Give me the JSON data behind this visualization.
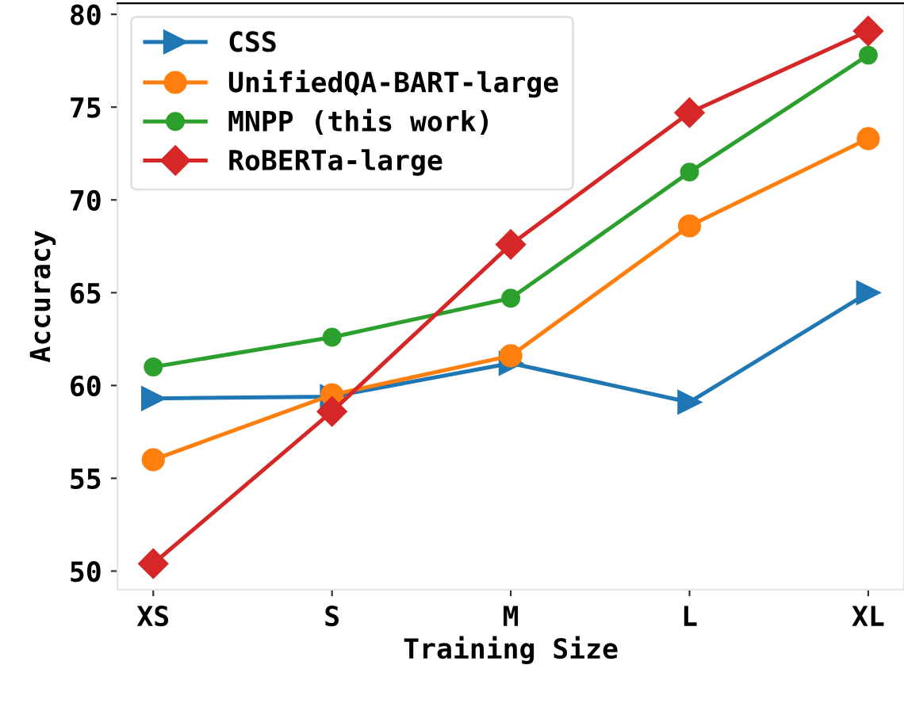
{
  "chart_data": {
    "type": "line",
    "xlabel": "Training Size",
    "ylabel": "Accuracy",
    "categories": [
      "XS",
      "S",
      "M",
      "L",
      "XL"
    ],
    "ylim": [
      49,
      80.6
    ],
    "yticks": [
      50,
      55,
      60,
      65,
      70,
      75,
      80
    ],
    "grid": false,
    "legend": "top left",
    "line_style": "solid",
    "series": [
      {
        "name": "CSS",
        "color": "#1f77b4",
        "marker": "triangle",
        "values": [
          59.3,
          59.4,
          61.2,
          59.1,
          65.0
        ]
      },
      {
        "name": "UnifiedQA-BART-large",
        "color": "#ff7f0e",
        "marker": "circle",
        "values": [
          56.0,
          59.5,
          61.6,
          68.6,
          73.3
        ]
      },
      {
        "name": "MNPP (this work)",
        "color": "#2ca02c",
        "marker": "circle",
        "values": [
          61.0,
          62.6,
          64.7,
          71.5,
          77.8
        ]
      },
      {
        "name": "RoBERTa-large",
        "color": "#d62728",
        "marker": "diamond",
        "values": [
          50.4,
          58.6,
          67.6,
          74.7,
          79.1
        ]
      }
    ]
  }
}
